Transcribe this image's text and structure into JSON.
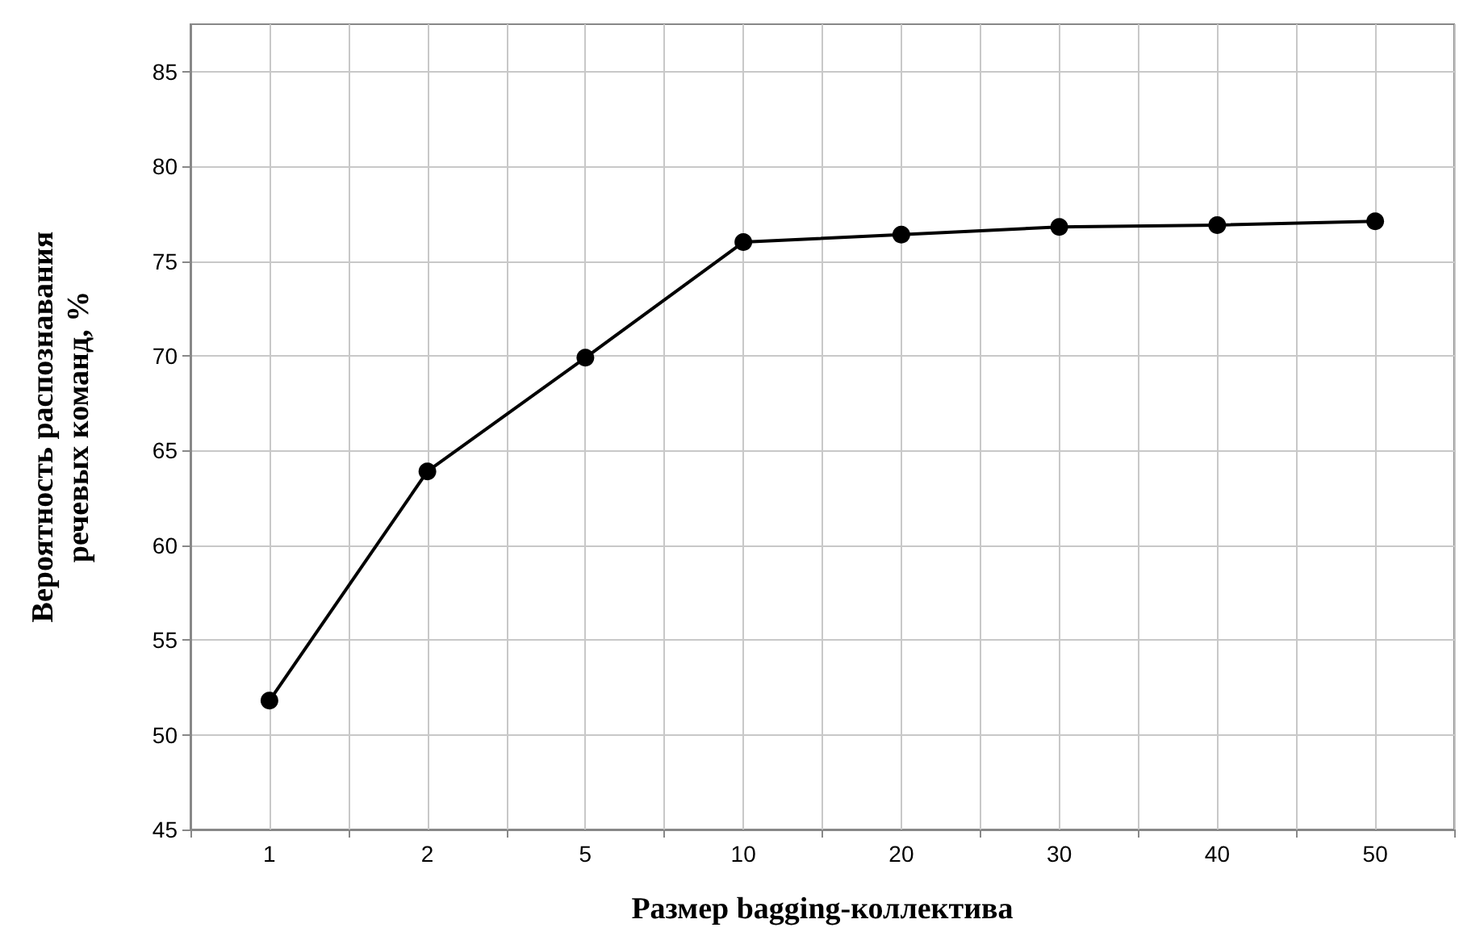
{
  "chart_data": {
    "type": "line",
    "xlabel": "Размер bagging-коллектива",
    "ylabel": "Вероятность распознавания речевых команд, %",
    "categories": [
      "1",
      "2",
      "5",
      "10",
      "20",
      "30",
      "40",
      "50"
    ],
    "series": [
      {
        "color": "#000000",
        "values": [
          51.8,
          63.9,
          69.9,
          76.0,
          76.4,
          76.8,
          76.9,
          77.1
        ]
      }
    ],
    "ylim": [
      45,
      87.5
    ],
    "yticks": [
      45,
      50,
      55,
      60,
      65,
      70,
      75,
      80,
      85
    ],
    "grid": true,
    "marker": "circle",
    "line_style": "solid"
  }
}
